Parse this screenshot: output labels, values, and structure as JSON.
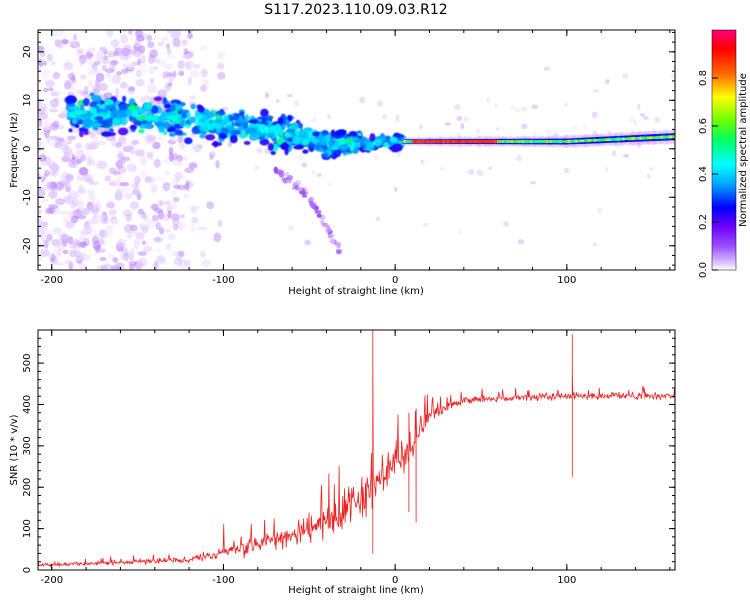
{
  "figure_title": "S117.2023.110.09.03.R12",
  "colors": {
    "snr_line": "#ee2222",
    "spectrogram_colormap": [
      "#ffffff",
      "#dcc2ff",
      "#9a4dff",
      "#6f00ff",
      "#0000ff",
      "#00aaff",
      "#00ffff",
      "#00ff66",
      "#66ff00",
      "#ffff00",
      "#ff6600",
      "#ff0000",
      "#ff0077"
    ]
  },
  "chart_data": [
    {
      "type": "heatmap",
      "name": "spectrogram",
      "xlabel": "Height of straight line (km)",
      "ylabel": "Frequency (Hz)",
      "xlim": [
        -208,
        163
      ],
      "ylim": [
        -25,
        24.5
      ],
      "xticks": [
        -200,
        -100,
        0,
        100
      ],
      "yticks": [
        -20,
        -10,
        0,
        10,
        20
      ],
      "colorbar": {
        "label": "Normalized spectral amplitude",
        "range": [
          0.0,
          1.0
        ],
        "ticks": [
          "0.0",
          "0.2",
          "0.4",
          "0.6",
          "0.8"
        ]
      },
      "features": {
        "scattered_region_x": [
          -208,
          -120
        ],
        "blob_band_center_hz": [
          [
            -180,
            7
          ],
          [
            -150,
            7
          ],
          [
            -120,
            6
          ],
          [
            -100,
            5
          ],
          [
            -80,
            4
          ],
          [
            -60,
            3
          ],
          [
            -40,
            1
          ],
          [
            -20,
            1
          ],
          [
            0,
            1.5
          ]
        ],
        "steady_line_x": [
          5,
          163
        ],
        "steady_line_hz": [
          [
            5,
            1.5
          ],
          [
            60,
            1.5
          ],
          [
            100,
            1.5
          ],
          [
            163,
            2.5
          ]
        ],
        "steady_line_peak_amplitude": 0.9,
        "falling_tail": [
          [
            -70,
            -4
          ],
          [
            -50,
            -10
          ],
          [
            -32,
            -21
          ]
        ]
      }
    },
    {
      "type": "line",
      "name": "snr",
      "xlabel": "Height of straight line (km)",
      "ylabel": "SNR (10 * v/v)",
      "xlim": [
        -208,
        163
      ],
      "ylim": [
        0,
        580
      ],
      "xticks": [
        -200,
        -100,
        0,
        100
      ],
      "yticks": [
        0,
        100,
        200,
        300,
        400,
        500
      ],
      "trend": [
        [
          -208,
          12
        ],
        [
          -180,
          15
        ],
        [
          -150,
          20
        ],
        [
          -120,
          25
        ],
        [
          -100,
          40
        ],
        [
          -80,
          60
        ],
        [
          -60,
          85
        ],
        [
          -40,
          110
        ],
        [
          -25,
          150
        ],
        [
          -15,
          200
        ],
        [
          -5,
          230
        ],
        [
          0,
          250
        ],
        [
          5,
          270
        ],
        [
          10,
          300
        ],
        [
          15,
          340
        ],
        [
          20,
          370
        ],
        [
          30,
          395
        ],
        [
          40,
          410
        ],
        [
          60,
          415
        ],
        [
          80,
          418
        ],
        [
          100,
          420
        ],
        [
          120,
          420
        ],
        [
          140,
          420
        ],
        [
          163,
          420
        ]
      ],
      "noise_amplitude": [
        [
          -208,
          8
        ],
        [
          -120,
          12
        ],
        [
          -100,
          35
        ],
        [
          -60,
          60
        ],
        [
          -40,
          80
        ],
        [
          -20,
          100
        ],
        [
          0,
          90
        ],
        [
          10,
          80
        ],
        [
          20,
          40
        ],
        [
          30,
          20
        ],
        [
          163,
          15
        ]
      ],
      "spikes": [
        {
          "x": -13,
          "values": [
            580,
            40,
            520
          ]
        },
        {
          "x": 103,
          "values": [
            570,
            225,
            480
          ]
        },
        {
          "x": 8,
          "values": [
            140,
            380
          ]
        },
        {
          "x": 12,
          "values": [
            115,
            390
          ]
        }
      ]
    }
  ]
}
